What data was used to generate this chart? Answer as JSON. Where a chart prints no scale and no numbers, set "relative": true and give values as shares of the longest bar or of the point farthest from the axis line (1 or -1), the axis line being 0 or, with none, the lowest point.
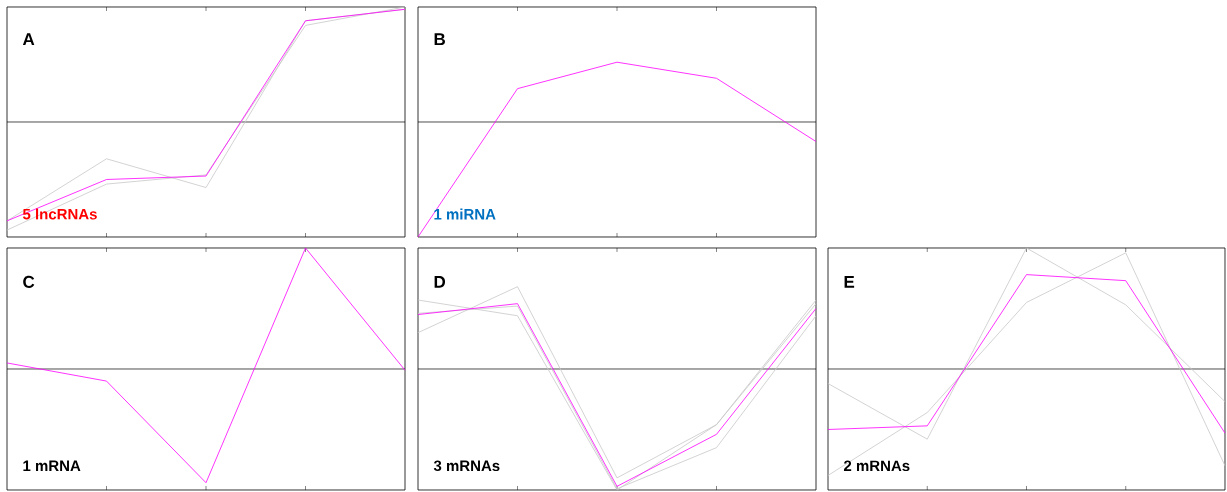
{
  "chart_data": [
    {
      "type": "line",
      "title": "A",
      "annotations": [
        "5 lncRNAs"
      ],
      "relative": true,
      "marker": "none",
      "categories": [
        null,
        null,
        null,
        null,
        null
      ],
      "series": [
        {
          "color": "#c8c8c8",
          "values": [
            -0.94,
            -0.54,
            -0.46,
            0.84,
            1
          ]
        },
        {
          "color": "#c8c8c8",
          "values": [
            -0.86,
            -0.32,
            -0.57,
            0.88,
            0.98
          ]
        },
        {
          "color": "#ff00ff",
          "values": [
            -0.86,
            -0.5,
            -0.47,
            0.88,
            0.98
          ]
        }
      ]
    },
    {
      "type": "line",
      "title": "B",
      "annotations": [
        "1 miRNA"
      ],
      "relative": true,
      "marker": "none",
      "categories": [
        null,
        null,
        null,
        null,
        null
      ],
      "series": [
        {
          "color": "#ff00ff",
          "values": [
            -1,
            0.29,
            0.52,
            0.38,
            -0.17
          ]
        }
      ]
    },
    {
      "type": "line",
      "title": "C",
      "annotations": [
        "1 mRNA"
      ],
      "relative": true,
      "marker": "none",
      "categories": [
        null,
        null,
        null,
        null,
        null
      ],
      "series": [
        {
          "color": "#ff00ff",
          "values": [
            0.05,
            -0.1,
            -0.94,
            1,
            -0.01
          ]
        }
      ]
    },
    {
      "type": "line",
      "title": "D",
      "annotations": [
        "3 mRNAs"
      ],
      "relative": true,
      "marker": "none",
      "categories": [
        null,
        null,
        null,
        null,
        null
      ],
      "series": [
        {
          "color": "#c8c8c8",
          "values": [
            0.57,
            0.44,
            -1,
            -0.46,
            0.57
          ]
        },
        {
          "color": "#c8c8c8",
          "values": [
            0.3,
            0.68,
            -0.9,
            -0.46,
            0.54
          ]
        },
        {
          "color": "#c8c8c8",
          "values": [
            0.46,
            0.52,
            -0.99,
            -0.65,
            0.44
          ]
        },
        {
          "color": "#ff00ff",
          "values": [
            0.45,
            0.54,
            -0.97,
            -0.54,
            0.5
          ]
        }
      ]
    },
    {
      "type": "line",
      "title": "E",
      "annotations": [
        "2 mRNAs"
      ],
      "relative": true,
      "marker": "none",
      "categories": [
        null,
        null,
        null,
        null,
        null
      ],
      "series": [
        {
          "color": "#c8c8c8",
          "values": [
            -0.12,
            -0.58,
            1,
            0.53,
            -0.27
          ]
        },
        {
          "color": "#c8c8c8",
          "values": [
            -0.88,
            -0.36,
            0.55,
            0.96,
            -0.8
          ]
        },
        {
          "color": "#ff00ff",
          "values": [
            -0.5,
            -0.47,
            0.78,
            0.73,
            -0.53
          ]
        }
      ]
    }
  ]
}
